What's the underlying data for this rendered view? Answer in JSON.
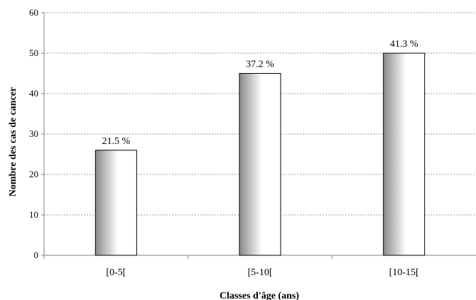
{
  "chart_data": {
    "type": "bar",
    "categories": [
      "[0-5[",
      "[5-10[",
      "[10-15["
    ],
    "values": [
      26,
      45,
      50
    ],
    "data_labels": [
      "21.5 %",
      "37.2 %",
      "41.3 %"
    ],
    "title": "",
    "xlabel": "Classes d'âge (ans)",
    "ylabel": "Nombre des cas de cancer",
    "ylim": [
      0,
      60
    ],
    "yticks": [
      0,
      10,
      20,
      30,
      40,
      50,
      60
    ],
    "grid": true,
    "legend": "none",
    "colors": {
      "bar_dark": "#8a8a8a",
      "bar_light": "#ffffff",
      "bar_border": "#000000",
      "grid": "#9a9a9a",
      "axis": "#808080"
    }
  }
}
